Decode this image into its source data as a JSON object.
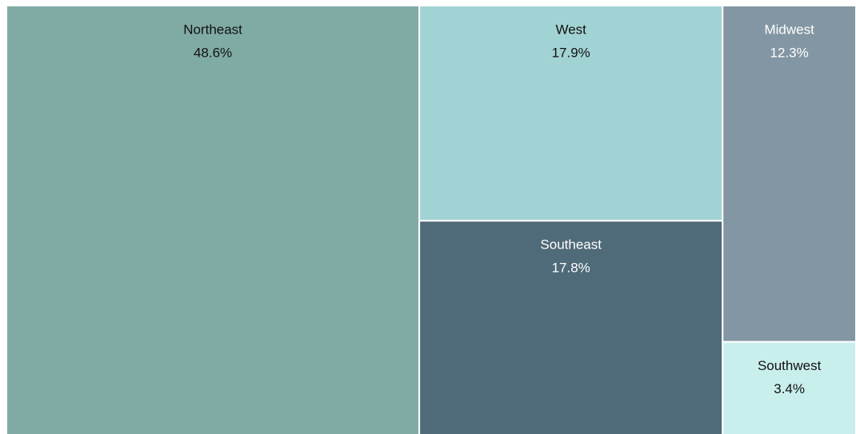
{
  "chart_data": {
    "type": "treemap",
    "categories": [
      "Northeast",
      "West",
      "Southeast",
      "Midwest",
      "Southwest"
    ],
    "values": [
      48.6,
      17.9,
      17.8,
      12.3,
      3.4
    ],
    "value_labels": [
      "48.6%",
      "17.9%",
      "17.8%",
      "12.3%",
      "3.4%"
    ],
    "colors": [
      "#80aba5",
      "#a2d3d4",
      "#4f6a78",
      "#8297a3",
      "#c9efec"
    ]
  }
}
